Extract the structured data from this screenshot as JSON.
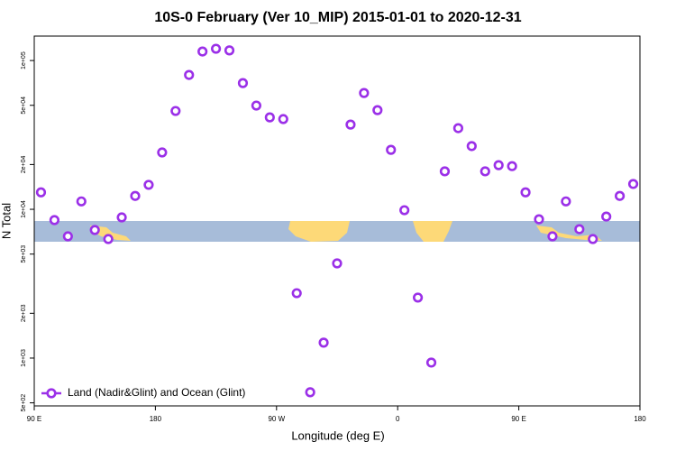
{
  "chart_data": {
    "type": "scatter",
    "title": "10S-0 February (Ver 10_MIP)   2015-01-01 to 2020-12-31",
    "x_label": "Longitude (deg E)",
    "y_label": "N Total",
    "log_y": true,
    "xlim": [
      90,
      540
    ],
    "xticks": [
      {
        "value": 90,
        "label": "90 E"
      },
      180,
      {
        "value": 270,
        "label": "90 W"
      },
      {
        "value": 360,
        "label": "0"
      },
      {
        "value": 450,
        "label": "90 E"
      },
      {
        "value": 540,
        "label": "180"
      }
    ],
    "ylim": [
      477,
      146000
    ],
    "yticks": [
      {
        "value": 500,
        "label": "5e+02"
      },
      {
        "value": 1000,
        "label": "1e+03"
      },
      {
        "value": 2000,
        "label": "2e+03"
      },
      {
        "value": 5000,
        "label": "5e+03"
      },
      {
        "value": 10000,
        "label": "1e+04"
      },
      {
        "value": 20000,
        "label": "2e+04"
      },
      {
        "value": 50000,
        "label": "5e+04"
      },
      {
        "value": 100000,
        "label": "1e+05"
      }
    ],
    "legend_position": "bottom-left",
    "series": [
      {
        "name": "Land (Nadir&Glint) and Ocean (Glint)",
        "color": "#9b30e8",
        "x": [
          95,
          105,
          115,
          125,
          135,
          145,
          155,
          165,
          175,
          185,
          195,
          205,
          215,
          225,
          235,
          245,
          255,
          265,
          275,
          285,
          295,
          305,
          315,
          325,
          335,
          345,
          355,
          365,
          375,
          385,
          395,
          405,
          415,
          425,
          435,
          445,
          455,
          465,
          475,
          485,
          495,
          505,
          515,
          525,
          535
        ],
        "values": [
          13000,
          8460,
          6580,
          11300,
          7260,
          6310,
          8820,
          12300,
          14600,
          24100,
          45800,
          80000,
          115000,
          120000,
          117000,
          70500,
          49800,
          41500,
          40400,
          2730,
          589,
          1270,
          4330,
          37100,
          60500,
          46400,
          25100,
          9860,
          2550,
          933,
          18000,
          35100,
          26600,
          18000,
          19800,
          19500,
          13000,
          8570,
          6580,
          11300,
          7350,
          6310,
          8940,
          12300,
          14800
        ]
      }
    ]
  }
}
